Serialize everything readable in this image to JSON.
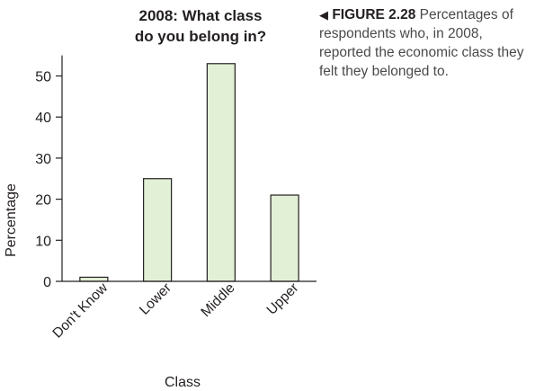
{
  "chart_data": {
    "type": "bar",
    "title": "2008: What class do you belong in?",
    "title_lines": [
      "2008: What class",
      "do you belong in?"
    ],
    "xlabel": "Class",
    "ylabel": "Percentage",
    "categories": [
      "Don't Know",
      "Lower",
      "Middle",
      "Upper"
    ],
    "values": [
      1,
      25,
      53,
      21
    ],
    "ylim": [
      0,
      55
    ],
    "yticks": [
      "0",
      "10",
      "20",
      "30",
      "40",
      "50"
    ],
    "grid": false,
    "bar_fill": "#e2f0d6",
    "bar_stroke": "#231f20"
  },
  "caption": {
    "marker": "◀",
    "label": "FIGURE 2.28",
    "text": " Percentages of respondents who, in 2008, reported the economic class they felt they belonged to."
  }
}
